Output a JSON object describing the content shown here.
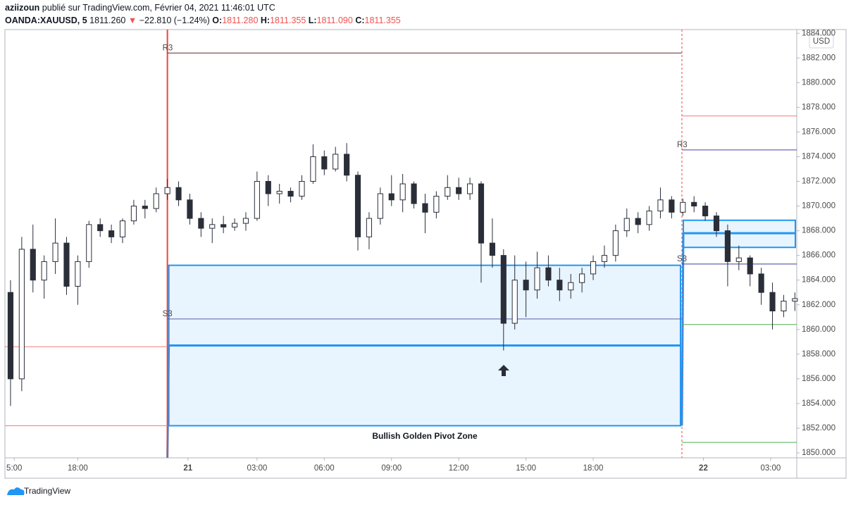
{
  "header": {
    "author": "aziizoun",
    "published": "publié sur TradingView.com, Février 04, 2021 11:46:01 UTC",
    "symbol": "OANDA:XAUUSD, 5",
    "price": "1811.260",
    "direction": "▼",
    "change": "−22.810 (−1.24%)",
    "o_label": "O:",
    "o": "1811.280",
    "h_label": "H:",
    "h": "1811.355",
    "l_label": "L:",
    "l": "1811.090",
    "c_label": "C:",
    "c": "1811.355"
  },
  "footer": {
    "brand": "TradingView"
  },
  "chart_data": {
    "type": "candlestick",
    "currency": "USD",
    "annotation": "Bullish Golden Pivot Zone",
    "candle_color": "#2a2e39",
    "grid": false,
    "xlim": [
      -39,
      385
    ],
    "ylim": [
      1849.6,
      1884.3
    ],
    "xticks": [
      {
        "value": -34,
        "label": "5:00"
      },
      {
        "value": 0,
        "label": "18:00"
      },
      {
        "value": 59,
        "label": "21"
      },
      {
        "value": 96,
        "label": "03:00"
      },
      {
        "value": 132,
        "label": "06:00"
      },
      {
        "value": 168,
        "label": "09:00"
      },
      {
        "value": 204,
        "label": "12:00"
      },
      {
        "value": 240,
        "label": "15:00"
      },
      {
        "value": 276,
        "label": "18:00"
      },
      {
        "value": 335,
        "label": "22"
      },
      {
        "value": 371,
        "label": "03:00"
      }
    ],
    "yticks": [
      {
        "value": 1850,
        "label": "1850.000"
      },
      {
        "value": 1852,
        "label": "1852.000"
      },
      {
        "value": 1854,
        "label": "1854.000"
      },
      {
        "value": 1856,
        "label": "1856.000"
      },
      {
        "value": 1858,
        "label": "1858.000"
      },
      {
        "value": 1860,
        "label": "1860.000"
      },
      {
        "value": 1862,
        "label": "1862.000"
      },
      {
        "value": 1864,
        "label": "1864.000"
      },
      {
        "value": 1866,
        "label": "1866.000"
      },
      {
        "value": 1868,
        "label": "1868.000"
      },
      {
        "value": 1870,
        "label": "1870.000"
      },
      {
        "value": 1872,
        "label": "1872.000"
      },
      {
        "value": 1874,
        "label": "1874.000"
      },
      {
        "value": 1876,
        "label": "1876.000"
      },
      {
        "value": 1878,
        "label": "1878.000"
      },
      {
        "value": 1880,
        "label": "1880.000"
      },
      {
        "value": 1882,
        "label": "1882.000"
      },
      {
        "value": 1884,
        "label": "1884.000"
      }
    ],
    "x": [
      -36,
      -30,
      -24,
      -18,
      -12,
      -6,
      0,
      6,
      12,
      18,
      24,
      30,
      36,
      42,
      48,
      54,
      60,
      66,
      72,
      78,
      84,
      90,
      96,
      102,
      108,
      114,
      120,
      126,
      132,
      138,
      144,
      150,
      156,
      162,
      168,
      174,
      180,
      186,
      192,
      198,
      204,
      210,
      216,
      222,
      228,
      234,
      240,
      246,
      252,
      258,
      264,
      270,
      276,
      282,
      288,
      294,
      300,
      306,
      312,
      318,
      324,
      330,
      336,
      342,
      348,
      354,
      360,
      366,
      372,
      378,
      384
    ],
    "open": [
      1863,
      1856,
      1866.5,
      1864,
      1865.5,
      1867,
      1863.5,
      1865.5,
      1868.5,
      1868,
      1867.5,
      1868.8,
      1870,
      1869.8,
      1871,
      1871.5,
      1870.5,
      1869,
      1868.2,
      1868.5,
      1868.3,
      1868.6,
      1869,
      1872,
      1871,
      1871.2,
      1870.8,
      1872,
      1874,
      1873,
      1874.2,
      1872.5,
      1867.5,
      1869,
      1871,
      1870.5,
      1871.8,
      1870.2,
      1869.5,
      1870.8,
      1871.5,
      1871,
      1871.8,
      1867,
      1866,
      1860.5,
      1864,
      1863.2,
      1865,
      1864,
      1863.2,
      1863.8,
      1864.5,
      1865.5,
      1866,
      1868,
      1869,
      1868.5,
      1869.6,
      1870.5,
      1869.5,
      1870.3,
      1870,
      1869.2,
      1868,
      1865.5,
      1865.8,
      1864.5,
      1863,
      1861.5,
      1862.3
    ],
    "high": [
      1864,
      1867.5,
      1868.5,
      1866,
      1869,
      1867.5,
      1866,
      1868.8,
      1869,
      1868.5,
      1869,
      1870.5,
      1870.5,
      1871.5,
      1872.2,
      1872,
      1871,
      1869.5,
      1869,
      1869.2,
      1869,
      1869.5,
      1872.8,
      1872.5,
      1871.8,
      1871.5,
      1872.5,
      1875,
      1874.5,
      1874.8,
      1875.1,
      1872.8,
      1869.5,
      1871.5,
      1872.5,
      1872.6,
      1872,
      1871,
      1871.2,
      1872.5,
      1872.3,
      1872.3,
      1872,
      1869,
      1866.5,
      1866,
      1865.5,
      1866.3,
      1866,
      1865,
      1864.5,
      1865,
      1866,
      1866.8,
      1868.5,
      1869.8,
      1869.5,
      1870,
      1871.5,
      1870.8,
      1870.6,
      1870.8,
      1870.3,
      1869.5,
      1868.5,
      1866.8,
      1866,
      1865,
      1863.8,
      1862.8,
      1863
    ],
    "low": [
      1853.8,
      1855,
      1863,
      1862.5,
      1864.5,
      1862.8,
      1862,
      1865,
      1867.5,
      1867,
      1867,
      1868.5,
      1869,
      1869.5,
      1870.5,
      1870,
      1868.5,
      1867.5,
      1867,
      1867.8,
      1868,
      1868,
      1868.8,
      1870,
      1870.2,
      1870.3,
      1870.5,
      1871.8,
      1872.5,
      1872.8,
      1872,
      1866.4,
      1866.5,
      1868.5,
      1870,
      1869.5,
      1869.8,
      1867.8,
      1869,
      1870.5,
      1870.5,
      1870.5,
      1863.8,
      1865,
      1858.3,
      1860,
      1861,
      1862.5,
      1863.5,
      1862.3,
      1862.5,
      1863,
      1864,
      1865,
      1865.5,
      1867.5,
      1867.8,
      1868,
      1869,
      1869,
      1869.2,
      1869.5,
      1868.8,
      1867.5,
      1863.5,
      1864.8,
      1863.5,
      1862,
      1860,
      1861,
      1861.5
    ],
    "close": [
      1856,
      1866.5,
      1864,
      1865.5,
      1867,
      1863.5,
      1865.5,
      1868.5,
      1868,
      1867.5,
      1868.8,
      1870,
      1869.8,
      1871,
      1871.5,
      1870.5,
      1869,
      1868.2,
      1868.5,
      1868.3,
      1868.6,
      1869,
      1872,
      1871,
      1871.2,
      1870.8,
      1872,
      1874,
      1873,
      1874.2,
      1872.5,
      1867.5,
      1869,
      1871,
      1870.5,
      1871.8,
      1870.2,
      1869.5,
      1870.8,
      1871.5,
      1871,
      1871.8,
      1867,
      1866,
      1860.5,
      1864,
      1863.2,
      1865,
      1864,
      1863.2,
      1863.8,
      1864.5,
      1865.5,
      1866,
      1868,
      1869,
      1868.5,
      1869.6,
      1870.5,
      1869.5,
      1870.3,
      1870,
      1869.2,
      1868,
      1865.5,
      1865.8,
      1864.5,
      1863,
      1861.5,
      1862.3,
      1862.5
    ],
    "session_breaks": [
      48,
      323.5
    ],
    "levels": [
      {
        "session": 0,
        "value": 1858.6,
        "color": "#f77c7c"
      },
      {
        "session": 0,
        "value": 1852.2,
        "color": "#f77c7c"
      },
      {
        "session": 1,
        "label": "R3",
        "value": 1882.4,
        "color": "#5a2a2a"
      },
      {
        "session": 1,
        "label": "S3",
        "value": 1860.85,
        "color": "#5c5cb0"
      },
      {
        "session": 2,
        "value": 1877.3,
        "color": "#f77c7c"
      },
      {
        "session": 2,
        "label": "R3",
        "value": 1874.55,
        "color": "#4b3fa8"
      },
      {
        "session": 2,
        "label": "S3",
        "value": 1865.3,
        "color": "#3f3f9e"
      },
      {
        "session": 2,
        "value": 1860.4,
        "color": "#4caf50"
      },
      {
        "session": 2,
        "value": 1850.85,
        "color": "#4caf50"
      }
    ],
    "zones": [
      {
        "session": 1,
        "top": 1865.2,
        "bottom": 1852.2,
        "pivot": 1858.7,
        "color": "#2196f3"
      },
      {
        "session": 2,
        "top": 1868.85,
        "bottom": 1866.65,
        "pivot": 1867.8,
        "color": "#2196f3"
      }
    ]
  }
}
